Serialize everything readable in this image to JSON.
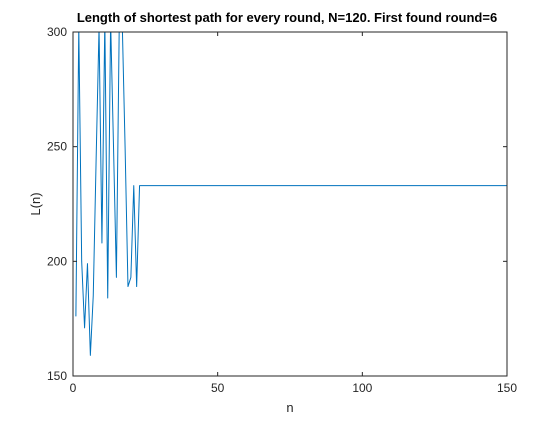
{
  "chart_data": {
    "type": "line",
    "title": "Length of shortest path for every round, N=120. First found round=6",
    "xlabel": "n",
    "ylabel": "L(n)",
    "xlim": [
      0,
      150
    ],
    "ylim": [
      150,
      300
    ],
    "xticks": [
      0,
      50,
      100,
      150
    ],
    "yticks": [
      150,
      200,
      250,
      300
    ],
    "xtick_labels": [
      "0",
      "50",
      "100",
      "150"
    ],
    "ytick_labels": [
      "150",
      "200",
      "250",
      "300"
    ],
    "grid": false,
    "legend": "none",
    "series": [
      {
        "color": "#0072bd",
        "x": [
          1,
          2,
          3,
          4,
          5,
          6,
          7,
          8,
          9,
          10,
          11,
          12,
          13,
          14,
          15,
          16,
          17,
          18,
          19,
          20,
          21,
          22,
          23,
          24,
          150
        ],
        "y": [
          176,
          302,
          200,
          171,
          199,
          159,
          185,
          245,
          302,
          208,
          305,
          184,
          305,
          250,
          193,
          305,
          305,
          250,
          189,
          193,
          233,
          189,
          233,
          233,
          233
        ]
      }
    ]
  }
}
